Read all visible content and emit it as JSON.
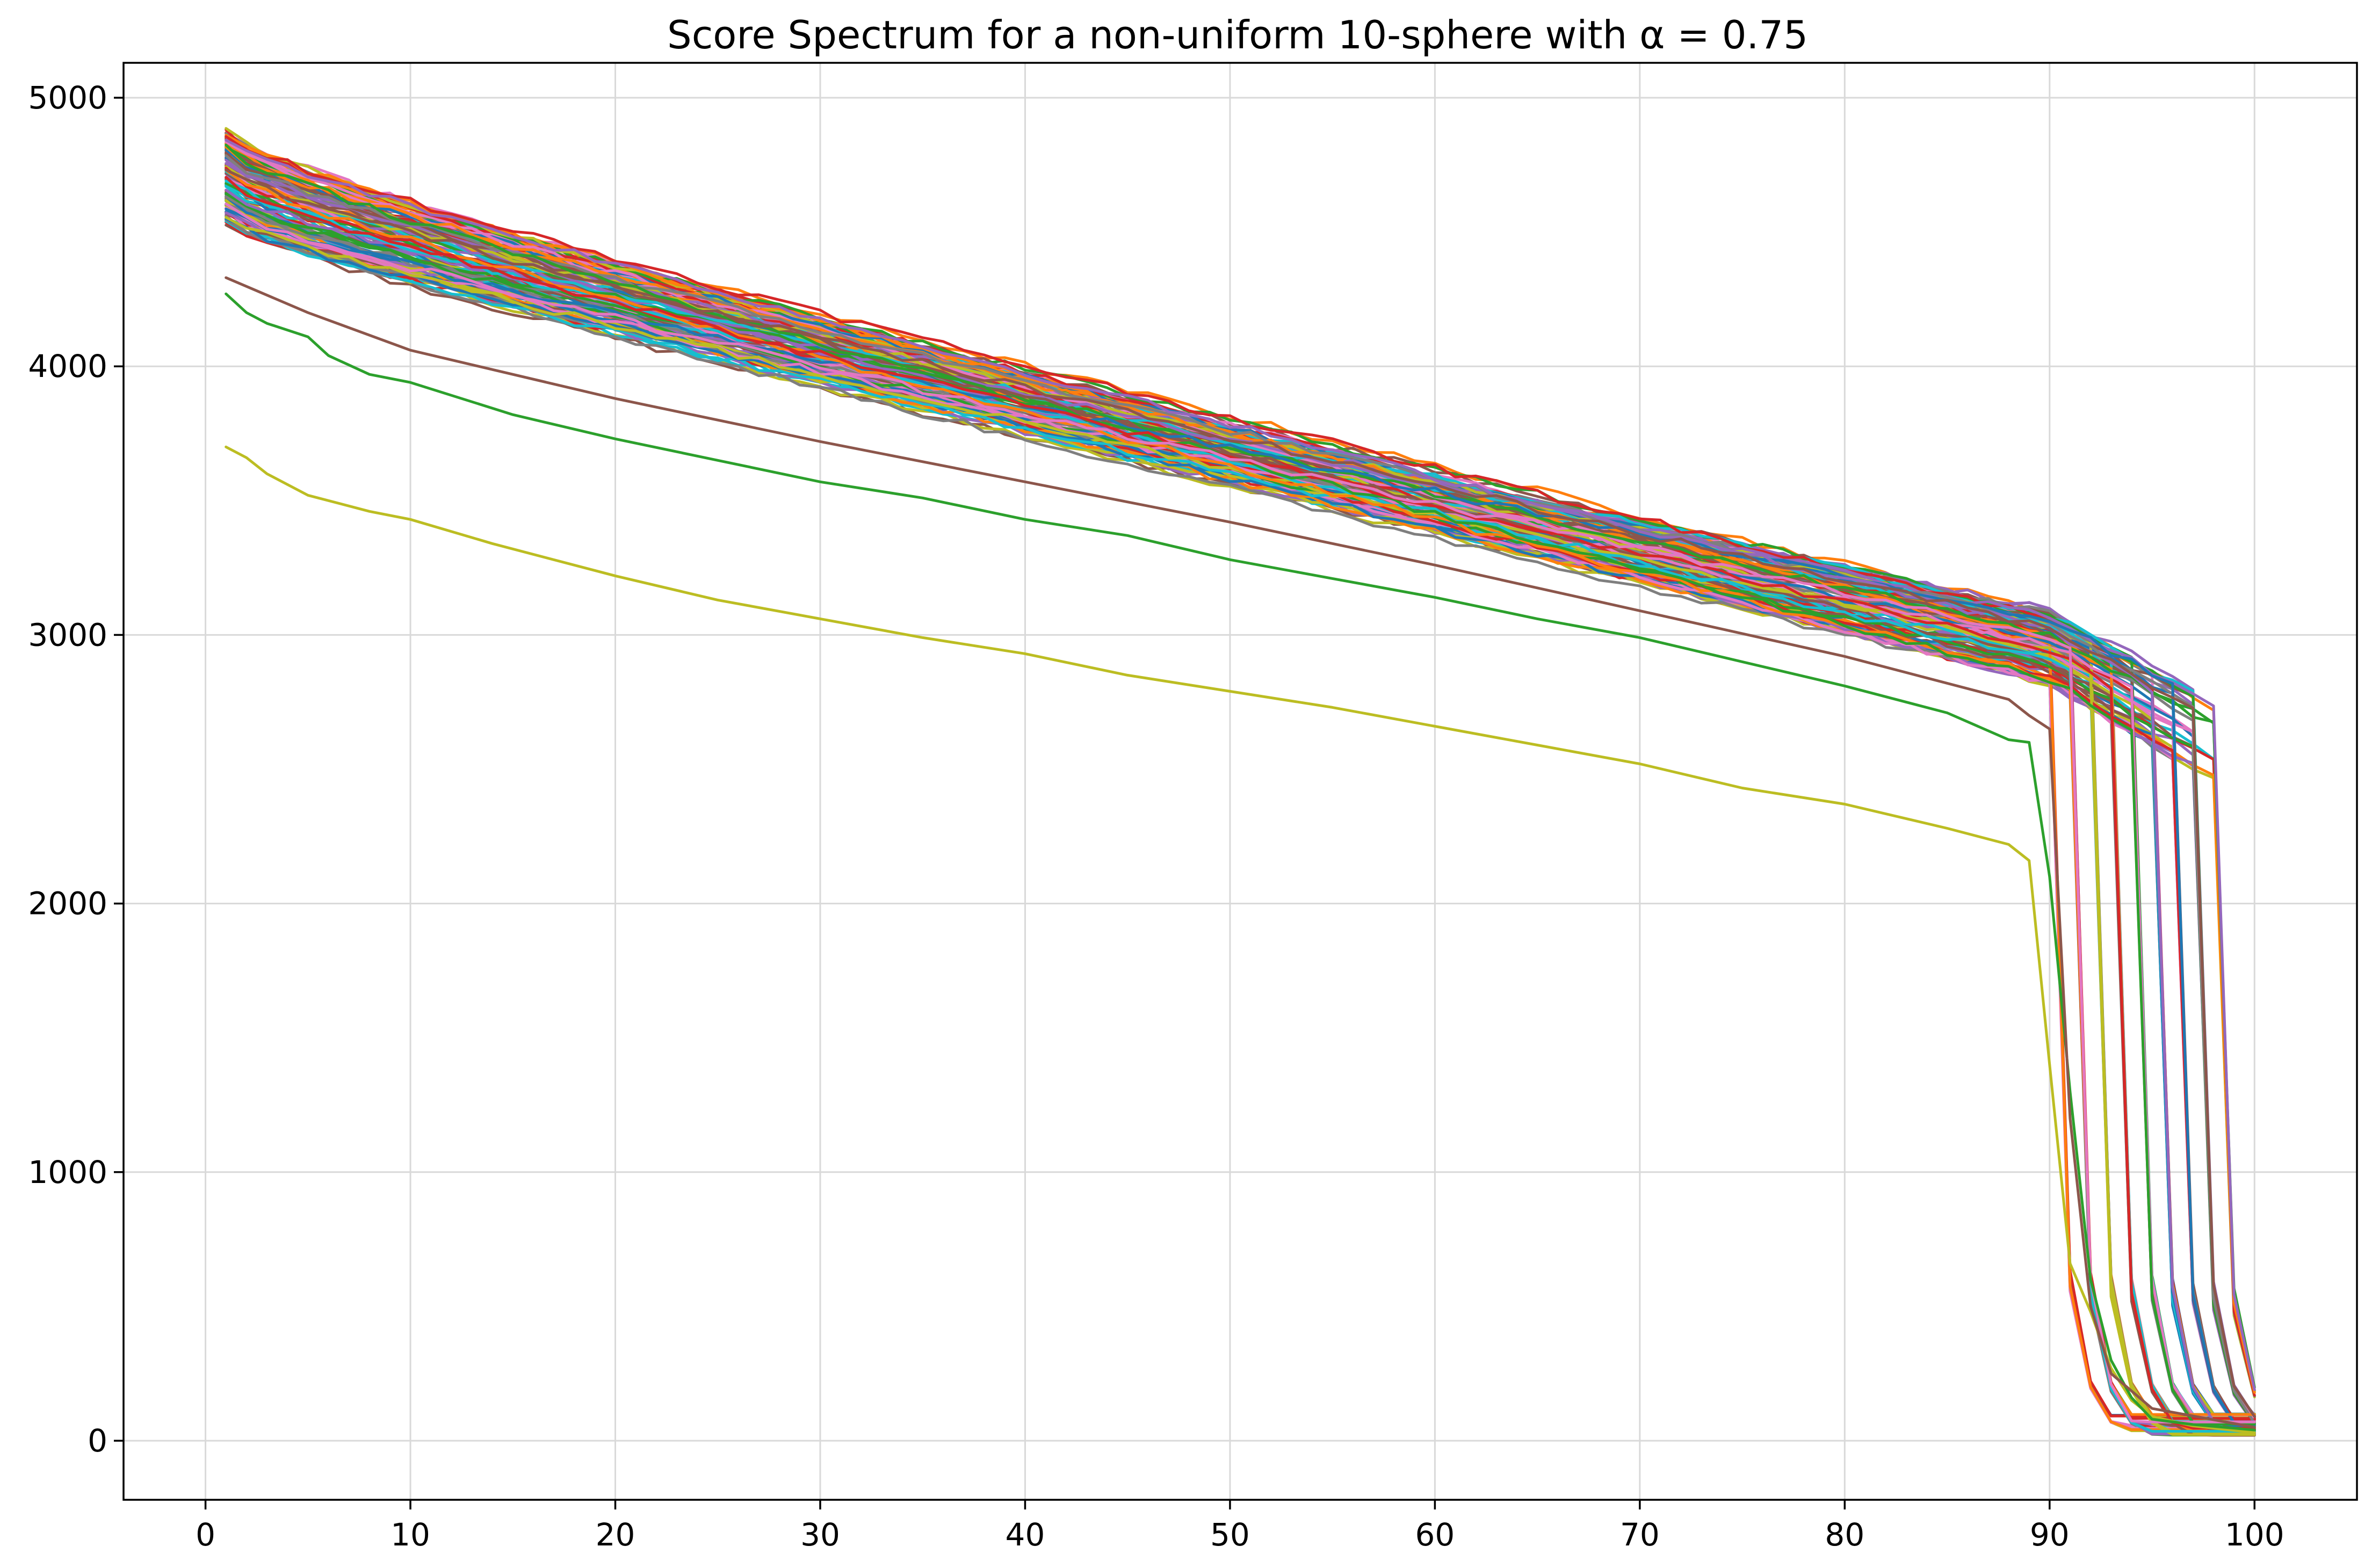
{
  "chart_data": {
    "type": "line",
    "title": "Score Spectrum for a non-uniform 10-sphere with α = 0.75",
    "xlabel": "",
    "ylabel": "",
    "xlim": [
      -4,
      105
    ],
    "ylim": [
      -220,
      5130
    ],
    "xticks": [
      "0",
      "10",
      "20",
      "30",
      "40",
      "50",
      "60",
      "70",
      "80",
      "90",
      "100"
    ],
    "yticks": [
      "0",
      "1000",
      "2000",
      "3000",
      "4000",
      "5000"
    ],
    "grid": true,
    "legend": "none",
    "x": "integers 1 to 100 (rank index)",
    "palette": [
      "#1f77b4",
      "#ff7f0e",
      "#2ca02c",
      "#d62728",
      "#9467bd",
      "#8c564b",
      "#e377c2",
      "#7f7f7f",
      "#bcbd22",
      "#17becf"
    ],
    "series_count": 120,
    "bulk_band": {
      "start_min": 4350,
      "start_max": 4880,
      "value_at_90_min": 2700,
      "value_at_90_max": 3100,
      "drop_index_min": 90,
      "drop_index_max": 98,
      "end_value_min": 20,
      "end_value_max": 100
    },
    "series": [
      {
        "color": "#bcbd22",
        "anchors": [
          [
            1,
            3700
          ],
          [
            2,
            3660
          ],
          [
            3,
            3600
          ],
          [
            5,
            3520
          ],
          [
            8,
            3460
          ],
          [
            10,
            3430
          ],
          [
            14,
            3340
          ],
          [
            20,
            3220
          ],
          [
            25,
            3130
          ],
          [
            30,
            3060
          ],
          [
            35,
            2990
          ],
          [
            40,
            2930
          ],
          [
            45,
            2850
          ],
          [
            50,
            2790
          ],
          [
            55,
            2730
          ],
          [
            60,
            2660
          ],
          [
            65,
            2590
          ],
          [
            70,
            2520
          ],
          [
            75,
            2430
          ],
          [
            80,
            2370
          ],
          [
            85,
            2280
          ],
          [
            88,
            2220
          ],
          [
            89,
            2160
          ],
          [
            90,
            1400
          ],
          [
            91,
            660
          ],
          [
            92,
            480
          ],
          [
            93,
            270
          ],
          [
            94,
            150
          ],
          [
            95,
            90
          ],
          [
            97,
            55
          ],
          [
            100,
            30
          ]
        ]
      },
      {
        "color": "#2ca02c",
        "anchors": [
          [
            1,
            4270
          ],
          [
            2,
            4200
          ],
          [
            3,
            4160
          ],
          [
            5,
            4110
          ],
          [
            6,
            4040
          ],
          [
            8,
            3970
          ],
          [
            10,
            3940
          ],
          [
            15,
            3820
          ],
          [
            20,
            3730
          ],
          [
            25,
            3650
          ],
          [
            30,
            3570
          ],
          [
            35,
            3510
          ],
          [
            40,
            3430
          ],
          [
            45,
            3370
          ],
          [
            50,
            3280
          ],
          [
            55,
            3210
          ],
          [
            60,
            3140
          ],
          [
            65,
            3060
          ],
          [
            70,
            2990
          ],
          [
            75,
            2900
          ],
          [
            80,
            2810
          ],
          [
            85,
            2710
          ],
          [
            88,
            2610
          ],
          [
            89,
            2600
          ],
          [
            90,
            2100
          ],
          [
            91,
            1300
          ],
          [
            92,
            600
          ],
          [
            93,
            300
          ],
          [
            94,
            160
          ],
          [
            95,
            80
          ],
          [
            97,
            60
          ],
          [
            100,
            40
          ]
        ]
      },
      {
        "color": "#8c564b",
        "anchors": [
          [
            1,
            4330
          ],
          [
            5,
            4200
          ],
          [
            10,
            4060
          ],
          [
            20,
            3880
          ],
          [
            30,
            3720
          ],
          [
            40,
            3570
          ],
          [
            50,
            3420
          ],
          [
            60,
            3260
          ],
          [
            70,
            3090
          ],
          [
            80,
            2920
          ],
          [
            88,
            2760
          ],
          [
            89,
            2700
          ],
          [
            90,
            2650
          ],
          [
            91,
            1200
          ],
          [
            92,
            500
          ],
          [
            93,
            250
          ],
          [
            95,
            120
          ],
          [
            100,
            50
          ]
        ]
      }
    ]
  }
}
